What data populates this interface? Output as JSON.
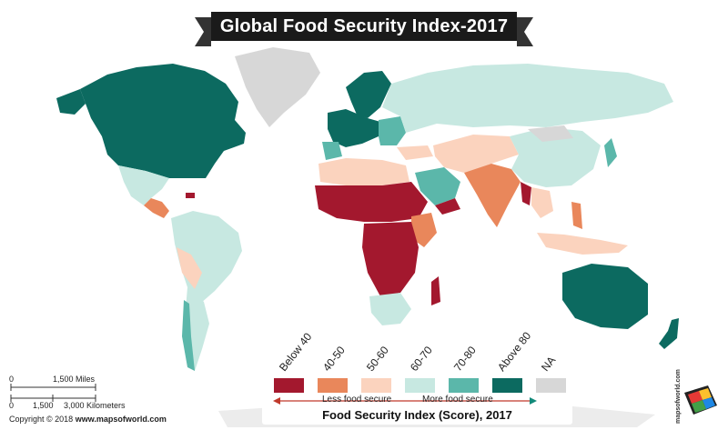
{
  "title": "Global Food Security Index-2017",
  "legend": {
    "items": [
      {
        "label": "Below 40",
        "color": "#a3182e"
      },
      {
        "label": "40-50",
        "color": "#e9875b"
      },
      {
        "label": "50-60",
        "color": "#fbd3be"
      },
      {
        "label": "60-70",
        "color": "#c7e8e1"
      },
      {
        "label": "70-80",
        "color": "#5bb7aa"
      },
      {
        "label": "Above 80",
        "color": "#0c6a60"
      },
      {
        "label": "NA",
        "color": "#d7d7d7"
      }
    ],
    "less_label": "Less food secure",
    "more_label": "More food secure",
    "caption": "Food Security Index (Score), 2017"
  },
  "scale": {
    "miles_zero": "0",
    "miles_label": "1,500 Miles",
    "km_zero": "0",
    "km_mid": "1,500",
    "km_label": "3,000 Kilometers"
  },
  "copyright": {
    "prefix": "Copyright © 2018 ",
    "site": "www.mapsofworld.com"
  },
  "logo_text": "mapsofworld.com",
  "colors": {
    "ocean": "#ffffff",
    "na": "#d7d7d7"
  }
}
